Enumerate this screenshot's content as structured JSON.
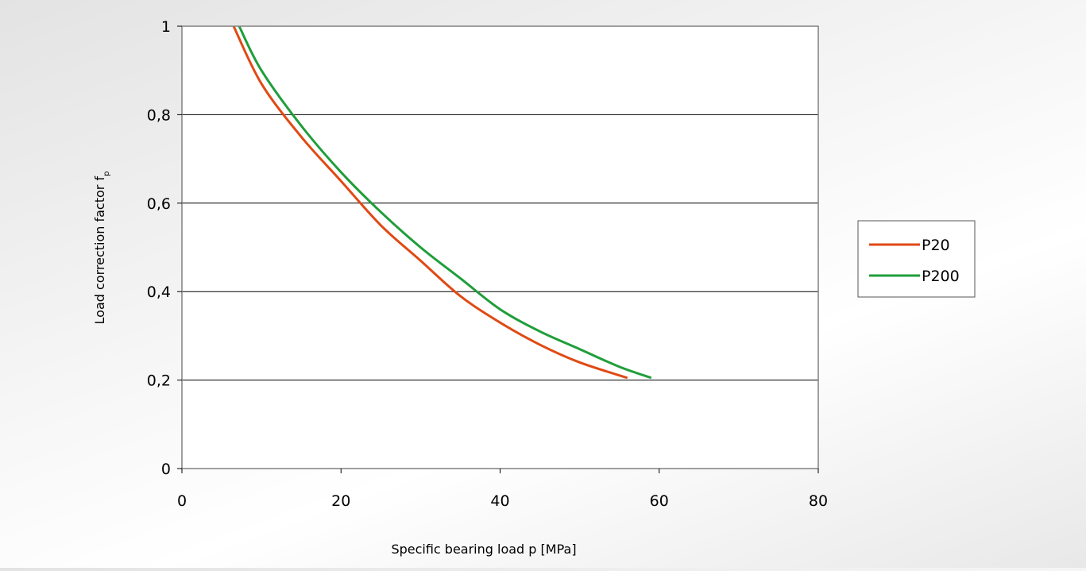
{
  "chart_data": {
    "type": "line",
    "xlabel": "Specific bearing load p [MPa]",
    "ylabel": "Load correction factor f",
    "ylabel_subscript": "p",
    "xlim": [
      0,
      80
    ],
    "ylim": [
      0,
      1
    ],
    "x_ticks": [
      "0",
      "20",
      "40",
      "60",
      "80"
    ],
    "y_ticks": [
      "0",
      "0,2",
      "0,4",
      "0,6",
      "0,8",
      "1"
    ],
    "grid": "horizontal",
    "legend_position": "right",
    "series": [
      {
        "name": "P20",
        "color": "#e04a14",
        "x": [
          6.5,
          10,
          15,
          20,
          25,
          30,
          35,
          40,
          45,
          50,
          56
        ],
        "y": [
          1.0,
          0.87,
          0.75,
          0.65,
          0.55,
          0.47,
          0.39,
          0.33,
          0.28,
          0.24,
          0.205
        ]
      },
      {
        "name": "P200",
        "color": "#1f9e3a",
        "x": [
          7.2,
          10,
          15,
          20,
          25,
          30,
          35,
          40,
          45,
          50,
          55,
          59
        ],
        "y": [
          1.0,
          0.9,
          0.775,
          0.67,
          0.58,
          0.5,
          0.43,
          0.36,
          0.31,
          0.27,
          0.23,
          0.205
        ]
      }
    ]
  }
}
